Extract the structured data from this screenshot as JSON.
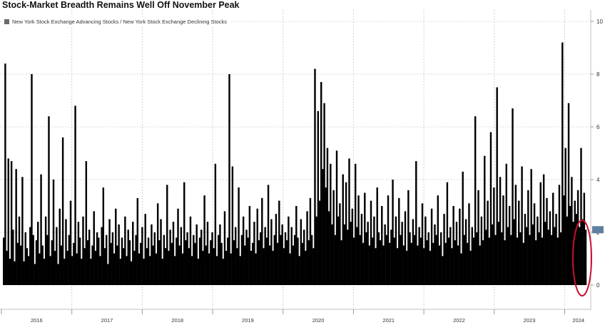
{
  "chart_data": {
    "type": "bar",
    "title": "Stock-Market Breadth Remains Well Off November Peak",
    "legend": [
      "New York Stock Exchange Advancing Stocks / New York Stock Exchange Declining Stocks"
    ],
    "legend_placement": "top-left",
    "ylim": [
      0,
      10
    ],
    "y_axis_side": "right",
    "y_ticks": [
      "0",
      "2",
      "4",
      "6",
      "8",
      "10"
    ],
    "x_ticks": [
      "2016",
      "2017",
      "2018",
      "2019",
      "2020",
      "2021",
      "2022",
      "2023",
      "2024"
    ],
    "last_value": 2.1,
    "grid": true,
    "annotation": "red ellipse around most recent 2024 values",
    "series": [
      {
        "name": "New York Stock Exchange Advancing Stocks / New York Stock Exchange Declining Stocks",
        "color": "#000000",
        "values": [
          1.8,
          8.4,
          1.3,
          4.8,
          1.0,
          4.7,
          2.1,
          0.9,
          4.4,
          1.6,
          2.6,
          1.5,
          4.1,
          0.9,
          2.0,
          1.4,
          1.1,
          2.2,
          8.0,
          1.9,
          0.8,
          1.7,
          2.4,
          1.2,
          4.2,
          1.5,
          1.0,
          2.6,
          1.9,
          6.4,
          1.1,
          1.7,
          4.0,
          1.3,
          2.2,
          0.8,
          2.9,
          1.5,
          5.6,
          1.0,
          2.5,
          1.3,
          1.9,
          3.2,
          1.1,
          1.6,
          6.8,
          1.2,
          2.4,
          1.8,
          1.0,
          2.6,
          1.4,
          4.7,
          1.7,
          2.1,
          1.0,
          1.5,
          2.8,
          1.3,
          2.0,
          1.8,
          1.1,
          2.2,
          3.7,
          1.4,
          1.9,
          0.8,
          2.5,
          1.6,
          2.0,
          1.2,
          2.9,
          1.5,
          2.3,
          1.0,
          1.8,
          1.4,
          2.6,
          1.1,
          2.1,
          1.7,
          0.9,
          2.4,
          1.3,
          1.9,
          3.3,
          1.2,
          1.6,
          2.2,
          1.0,
          2.7,
          1.4,
          1.8,
          1.1,
          2.3,
          1.5,
          2.0,
          1.2,
          3.1,
          1.7,
          2.5,
          1.0,
          1.9,
          1.4,
          3.8,
          1.3,
          2.1,
          1.6,
          2.4,
          1.1,
          1.8,
          2.9,
          1.5,
          2.2,
          1.2,
          3.9,
          1.7,
          2.0,
          1.4,
          2.6,
          1.1,
          1.9,
          1.6,
          2.3,
          1.0,
          1.8,
          2.1,
          1.3,
          3.4,
          1.5,
          2.4,
          1.2,
          1.7,
          2.0,
          1.4,
          4.6,
          1.1,
          1.9,
          2.3,
          1.6,
          1.0,
          2.8,
          1.3,
          1.8,
          8.0,
          1.2,
          4.5,
          1.7,
          2.2,
          1.4,
          3.7,
          1.1,
          1.9,
          2.6,
          1.5,
          2.1,
          1.8,
          3.0,
          1.3,
          1.6,
          2.4,
          1.2,
          2.9,
          1.7,
          2.0,
          3.3,
          1.4,
          2.2,
          1.8,
          3.8,
          1.5,
          2.5,
          1.3,
          1.9,
          2.7,
          1.6,
          3.2,
          1.9,
          2.3,
          1.4,
          2.0,
          1.7,
          2.6,
          1.2,
          2.2,
          1.5,
          1.9,
          3.0,
          1.8,
          1.1,
          2.5,
          1.6,
          2.1,
          1.3,
          2.8,
          1.7,
          3.3,
          1.9,
          1.4,
          8.2,
          2.6,
          6.6,
          3.2,
          7.7,
          4.4,
          6.9,
          3.7,
          5.2,
          2.8,
          4.6,
          2.3,
          3.6,
          1.9,
          5.1,
          2.6,
          3.1,
          1.7,
          4.2,
          2.3,
          3.9,
          2.1,
          4.8,
          2.4,
          2.9,
          1.8,
          4.6,
          2.2,
          3.4,
          1.9,
          2.7,
          1.6,
          3.5,
          2.0,
          2.4,
          1.5,
          3.2,
          1.8,
          2.6,
          1.4,
          3.7,
          2.0,
          1.7,
          3.0,
          1.5,
          2.3,
          1.9,
          3.4,
          1.6,
          2.1,
          4.0,
          1.8,
          2.6,
          1.4,
          3.3,
          1.9,
          2.4,
          1.5,
          2.8,
          1.3,
          3.6,
          2.0,
          1.6,
          2.5,
          1.9,
          4.7,
          1.5,
          2.2,
          1.8,
          3.1,
          1.4,
          2.6,
          1.7,
          2.0,
          1.3,
          2.9,
          1.6,
          2.3,
          1.9,
          3.4,
          1.5,
          2.0,
          1.1,
          2.7,
          1.6,
          3.9,
          1.8,
          2.2,
          1.4,
          3.0,
          1.7,
          2.4,
          1.5,
          2.9,
          1.2,
          4.3,
          1.9,
          2.5,
          1.6,
          3.1,
          1.3,
          2.2,
          1.8,
          6.4,
          2.0,
          3.6,
          1.5,
          2.6,
          1.7,
          4.9,
          2.1,
          3.2,
          1.8,
          5.8,
          2.3,
          3.7,
          1.9,
          7.5,
          2.4,
          4.1,
          2.0,
          3.4,
          1.7,
          4.6,
          2.2,
          3.0,
          1.9,
          6.7,
          2.5,
          3.8,
          1.8,
          3.2,
          2.0,
          4.5,
          1.6,
          2.7,
          2.2,
          3.6,
          1.9,
          4.4,
          2.3,
          3.1,
          1.7,
          2.6,
          2.0,
          3.9,
          1.8,
          4.2,
          2.4,
          3.3,
          2.1,
          2.8,
          1.9,
          3.5,
          2.2,
          2.7,
          1.8,
          3.8,
          2.0,
          9.2,
          3.4,
          5.2,
          2.6,
          6.9,
          3.0,
          4.1,
          2.4,
          3.2,
          2.7,
          3.6,
          2.2,
          5.2,
          2.5,
          3.5,
          2.1
        ]
      }
    ]
  }
}
